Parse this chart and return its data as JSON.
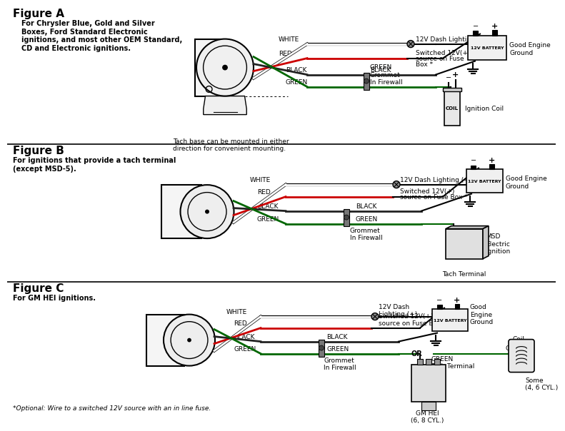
{
  "bg_color": "#ffffff",
  "text_color": "#000000",
  "blue_color": "#1a3a8a",
  "figA_label": "Figure A",
  "figA_desc": "For Chrysler Blue, Gold and Silver\nBoxes, Ford Standard Electronic\nignitions, and most other OEM Standard,\nCD and Electronic ignitions.",
  "figA_note": "Tach base can be mounted in either\ndirection for convenient mounting.",
  "figB_label": "Figure B",
  "figB_desc": "For ignitions that provide a tach terminal\n(except MSD-5).",
  "figC_label": "Figure C",
  "figC_desc": "For GM HEI ignitions.",
  "footer": "*Optional: Wire to a switched 12V source with an in line fuse.",
  "wire_names": [
    "WHITE",
    "RED",
    "BLACK",
    "GREEN"
  ],
  "wire_draw_colors": [
    "#ffffff",
    "#cc0000",
    "#222222",
    "#006600"
  ],
  "label_12v": "12V Dash Lighting (+)",
  "label_switched": "Switched 12V(+)\nsource on Fuse\nBox *",
  "label_switchedB": "Switched 12V(+)\nsource on Fuse Box *",
  "label_black": "BLACK",
  "label_green_grommet": "GREEN\nGrommet\nIn Firewall",
  "label_grommet": "Grommet\nIn Firewall",
  "label_good_engine": "Good Engine\nGround",
  "label_ignition_coil": "Ignition Coil",
  "label_battery": "12V BATTERY",
  "label_coil": "COIL",
  "label_msd": "MSD\nElectric\nIgnition",
  "label_tach_terminal": "Tach Terminal",
  "label_green": "GREEN",
  "label_or": "OR",
  "label_gmhei": "GM HEI\n(6, 8 CYL.)",
  "label_coil_neg": "Coil\n(-)",
  "label_some": "Some\n(4, 6 CYL.)",
  "label_coil_top": "Coil",
  "label_good_engineC": "Good\nEngine\nGround",
  "label_tach_terminalC": "Tach Terminal",
  "label_12vC": "12V Dash\nLighting (+)"
}
